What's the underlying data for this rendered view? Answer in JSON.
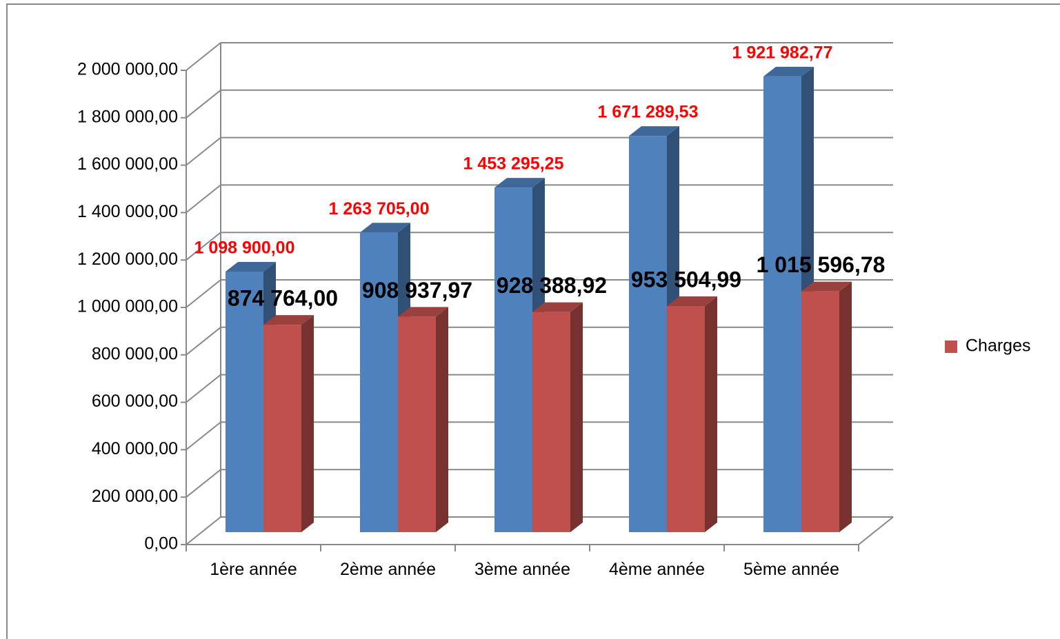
{
  "chart_data": {
    "type": "bar3d",
    "categories": [
      "1ère année",
      "2ème année",
      "3ème année",
      "4ème année",
      "5ème année"
    ],
    "series": [
      {
        "color": "#4f81bd",
        "values": [
          1098900.0,
          1263705.0,
          1453295.25,
          1671289.53,
          1921982.77
        ],
        "value_labels": [
          "1 098 900,00",
          "1 263 705,00",
          "1 453 295,25",
          "1 671 289,53",
          "1 921 982,77"
        ]
      },
      {
        "name": "Charges",
        "color": "#c0504d",
        "values": [
          874764.0,
          908937.97,
          928388.92,
          953504.99,
          1015596.78
        ],
        "value_labels": [
          "874 764,00",
          "908 937,97",
          "928 388,92",
          "953 504,99",
          "1 015 596,78"
        ]
      }
    ],
    "ylim": [
      0,
      2000000
    ],
    "yticks": [
      {
        "value": 0,
        "label": "0,00"
      },
      {
        "value": 200000,
        "label": "200 000,00"
      },
      {
        "value": 400000,
        "label": "400 000,00"
      },
      {
        "value": 600000,
        "label": "600 000,00"
      },
      {
        "value": 800000,
        "label": "800 000,00"
      },
      {
        "value": 1000000,
        "label": "1 000 000,00"
      },
      {
        "value": 1200000,
        "label": "1 200 000,00"
      },
      {
        "value": 1400000,
        "label": "1 400 000,00"
      },
      {
        "value": 1600000,
        "label": "1 600 000,00"
      },
      {
        "value": 1800000,
        "label": "1 800 000,00"
      },
      {
        "value": 2000000,
        "label": "2 000 000,00"
      }
    ],
    "grid": true,
    "legend": "right"
  }
}
